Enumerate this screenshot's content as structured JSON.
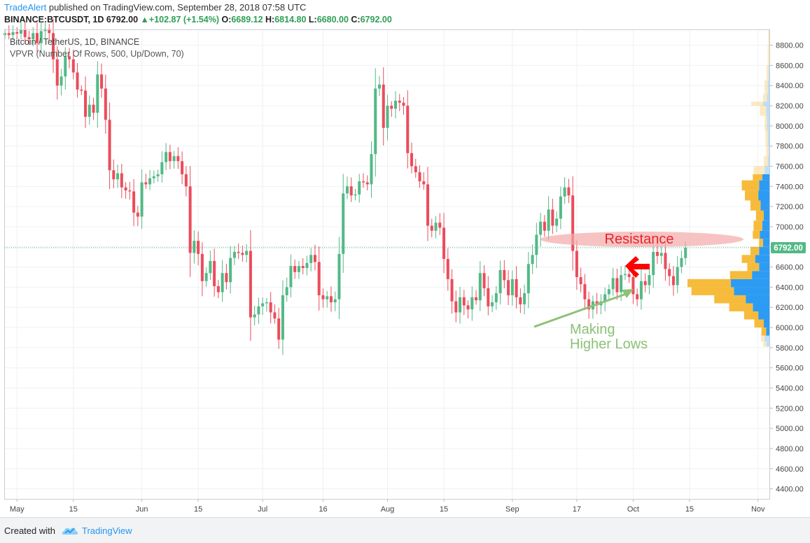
{
  "header": {
    "author": "TradeAlert",
    "published_text": "published on TradingView.com, September 28, 2018 07:58 UTC",
    "symbol": "BINANCE:BTCUSDT, 1D",
    "last": "6792.00",
    "change": "+102.87 (+1.54%)",
    "o_label": "O:",
    "o": "6689.12",
    "h_label": "H:",
    "h": "6814.80",
    "l_label": "L:",
    "l": "6680.00",
    "c_label": "C:",
    "c": "6792.00"
  },
  "legend": {
    "instrument": "Bitcoin / TetherUS, 1D, BINANCE",
    "indicator": "VPVR (Number Of Rows, 500, Up/Down, 70)"
  },
  "footer": {
    "created_with": "Created with",
    "brand": "TradingView"
  },
  "colors": {
    "up": "#53b987",
    "down": "#eb4d5c",
    "vol_up": "#2196f3",
    "vol_down": "#f7b731",
    "arrow": "#ff0000",
    "green_annotation": "#8cc176",
    "resistance_fill": "#f4a9a8"
  },
  "annotations": {
    "resistance": "Resistance",
    "higher_lows_line1": "Making",
    "higher_lows_line2": "Higher Lows"
  },
  "chart_data": {
    "type": "candlestick",
    "title": "Bitcoin / TetherUS, 1D, BINANCE",
    "xlabel": "",
    "ylabel": "",
    "ylim": [
      4300,
      8950
    ],
    "y_ticks": [
      4400,
      4600,
      4800,
      5000,
      5200,
      5400,
      5600,
      5800,
      6000,
      6200,
      6400,
      6600,
      6800,
      7000,
      7200,
      7400,
      7600,
      7800,
      8000,
      8200,
      8400,
      8600,
      8800
    ],
    "x_ticks": [
      {
        "label": "May",
        "date": "2018-05-01"
      },
      {
        "label": "15",
        "date": "2018-05-15"
      },
      {
        "label": "Jun",
        "date": "2018-06-01"
      },
      {
        "label": "15",
        "date": "2018-06-15"
      },
      {
        "label": "Jul",
        "date": "2018-07-01"
      },
      {
        "label": "16",
        "date": "2018-07-16"
      },
      {
        "label": "Aug",
        "date": "2018-08-01"
      },
      {
        "label": "15",
        "date": "2018-08-15"
      },
      {
        "label": "Sep",
        "date": "2018-09-01"
      },
      {
        "label": "17",
        "date": "2018-09-17"
      },
      {
        "label": "Oct",
        "date": "2018-10-01"
      },
      {
        "label": "15",
        "date": "2018-10-15"
      },
      {
        "label": "Nov",
        "date": "2018-11-01"
      }
    ],
    "x_range": [
      "2018-04-28",
      "2018-11-04"
    ],
    "first_date": "2018-04-28",
    "price_label": "6792.00",
    "last_price": 6792,
    "closes": [
      8920,
      8900,
      8930,
      8915,
      8950,
      8880,
      8860,
      8920,
      8820,
      8940,
      8960,
      8920,
      8660,
      8400,
      8490,
      8690,
      8660,
      8530,
      8360,
      8350,
      8090,
      8210,
      8130,
      8510,
      8370,
      8060,
      7560,
      7470,
      7530,
      7390,
      7360,
      7350,
      7140,
      7100,
      7440,
      7420,
      7480,
      7500,
      7520,
      7640,
      7740,
      7650,
      7700,
      7650,
      7520,
      7400,
      6740,
      6860,
      6730,
      6460,
      6540,
      6660,
      6410,
      6350,
      6540,
      6450,
      6690,
      6750,
      6740,
      6720,
      6760,
      6100,
      6130,
      6210,
      6240,
      6250,
      6150,
      6090,
      5880,
      6320,
      6400,
      6610,
      6550,
      6610,
      6590,
      6640,
      6720,
      6650,
      6320,
      6280,
      6310,
      6250,
      6280,
      6730,
      7330,
      7400,
      7310,
      7320,
      7450,
      7440,
      7420,
      7720,
      8370,
      8410,
      7980,
      8200,
      8170,
      8250,
      8230,
      8200,
      7730,
      7600,
      7540,
      7450,
      7420,
      7010,
      6960,
      7040,
      6990,
      6680,
      6480,
      6260,
      6150,
      6300,
      6220,
      6180,
      6300,
      6270,
      6540,
      6390,
      6210,
      6250,
      6340,
      6570,
      6470,
      6320,
      6480,
      6300,
      6230,
      6340,
      6630,
      6720,
      6920,
      7050,
      6960,
      7170,
      7010,
      7080,
      7300,
      7390,
      7310,
      6760,
      6500,
      6430,
      6280,
      6180,
      6260,
      6220,
      6260,
      6330,
      6380,
      6490,
      6350,
      6520,
      6530,
      6500,
      6330,
      6280,
      6460,
      6420,
      6520,
      6750,
      6710,
      6740,
      6580,
      6510,
      6420,
      6600,
      6689,
      6792
    ],
    "vpvr": [
      {
        "p0": 5810,
        "p1": 5860,
        "up": 10,
        "down": 8
      },
      {
        "p0": 5860,
        "p1": 5920,
        "up": 14,
        "down": 9
      },
      {
        "p0": 5920,
        "p1": 6000,
        "up": 10,
        "down": 12
      },
      {
        "p0": 6000,
        "p1": 6080,
        "up": 16,
        "down": 24
      },
      {
        "p0": 6080,
        "p1": 6160,
        "up": 30,
        "down": 36
      },
      {
        "p0": 6160,
        "p1": 6240,
        "up": 44,
        "down": 60
      },
      {
        "p0": 6240,
        "p1": 6320,
        "up": 62,
        "down": 80
      },
      {
        "p0": 6320,
        "p1": 6400,
        "up": 92,
        "down": 108
      },
      {
        "p0": 6400,
        "p1": 6480,
        "up": 100,
        "down": 110
      },
      {
        "p0": 6480,
        "p1": 6560,
        "up": 46,
        "down": 56
      },
      {
        "p0": 6560,
        "p1": 6640,
        "up": 28,
        "down": 30
      },
      {
        "p0": 6640,
        "p1": 6720,
        "up": 38,
        "down": 34
      },
      {
        "p0": 6720,
        "p1": 6800,
        "up": 28,
        "down": 22
      },
      {
        "p0": 6800,
        "p1": 6880,
        "up": 18,
        "down": 10
      },
      {
        "p0": 6880,
        "p1": 6960,
        "up": 26,
        "down": 18
      },
      {
        "p0": 6960,
        "p1": 7060,
        "up": 20,
        "down": 22
      },
      {
        "p0": 7060,
        "p1": 7160,
        "up": 16,
        "down": 20
      },
      {
        "p0": 7160,
        "p1": 7260,
        "up": 24,
        "down": 26
      },
      {
        "p0": 7260,
        "p1": 7360,
        "up": 30,
        "down": 34
      },
      {
        "p0": 7360,
        "p1": 7460,
        "up": 28,
        "down": 44
      },
      {
        "p0": 7460,
        "p1": 7520,
        "up": 20,
        "down": 24
      },
      {
        "p0": 7520,
        "p1": 7600,
        "up": 14,
        "down": 28
      },
      {
        "p0": 7600,
        "p1": 7700,
        "up": 6,
        "down": 10
      },
      {
        "p0": 7700,
        "p1": 7800,
        "up": 4,
        "down": 6
      },
      {
        "p0": 7800,
        "p1": 7950,
        "up": 6,
        "down": 6
      },
      {
        "p0": 7950,
        "p1": 8100,
        "up": 8,
        "down": 6
      },
      {
        "p0": 8100,
        "p1": 8200,
        "up": 10,
        "down": 16
      },
      {
        "p0": 8200,
        "p1": 8240,
        "up": 18,
        "down": 30
      },
      {
        "p0": 8240,
        "p1": 8320,
        "up": 8,
        "down": 10
      },
      {
        "p0": 8320,
        "p1": 8450,
        "up": 6,
        "down": 8
      },
      {
        "p0": 8450,
        "p1": 8600,
        "up": 4,
        "down": 5
      },
      {
        "p0": 8600,
        "p1": 8800,
        "up": 2,
        "down": 4
      },
      {
        "p0": 8800,
        "p1": 8950,
        "up": 2,
        "down": 3
      }
    ],
    "value_area": [
      5950,
      7510
    ]
  }
}
